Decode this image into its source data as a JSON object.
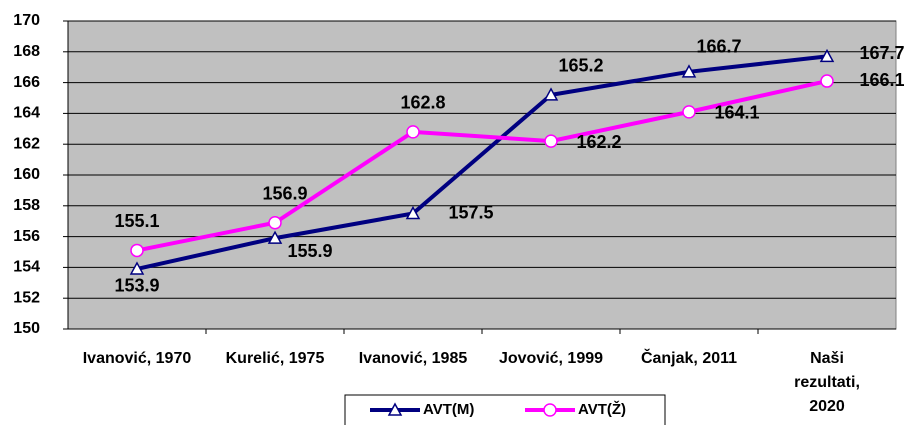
{
  "chart_data": {
    "type": "line",
    "categories": [
      "Ivanović, 1970",
      "Kurelić, 1975",
      "Ivanović, 1985",
      "Jovović, 1999",
      "Čanjak, 2011",
      "Naši rezultati, 2020"
    ],
    "series": [
      {
        "name": "AVT(M)",
        "color": "#000080",
        "marker": "triangle",
        "values": [
          153.9,
          155.9,
          157.5,
          165.2,
          166.7,
          167.7
        ]
      },
      {
        "name": "AVT(Ž)",
        "color": "#ff00ff",
        "marker": "circle",
        "values": [
          155.1,
          156.9,
          162.8,
          162.2,
          164.1,
          166.1
        ]
      }
    ],
    "ylim": [
      150,
      170
    ],
    "yticks": [
      150,
      152,
      154,
      156,
      158,
      160,
      162,
      164,
      166,
      168,
      170
    ],
    "grid": true,
    "background": "#c0c0c0",
    "legend": "bottom"
  }
}
